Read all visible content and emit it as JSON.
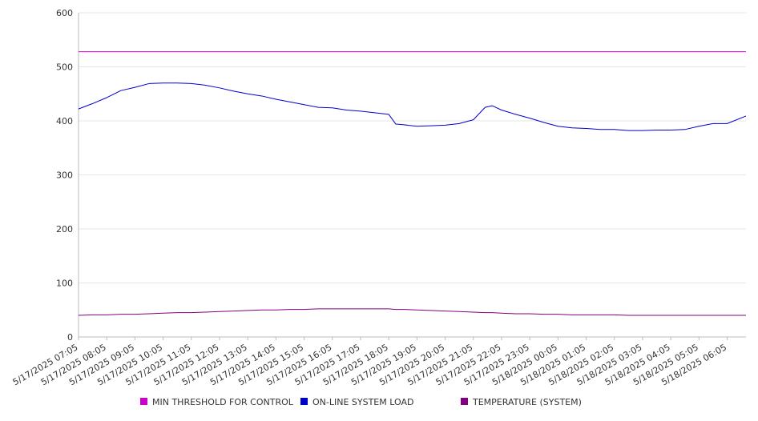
{
  "chart_data": {
    "type": "line",
    "title": "",
    "xlabel": "",
    "ylabel": "",
    "ylim": [
      0,
      600
    ],
    "yticks": [
      0,
      100,
      200,
      300,
      400,
      500,
      600
    ],
    "grid": true,
    "legend_position": "bottom",
    "x_range": [
      "5/17/2025 07:05",
      "5/18/2025 06:45"
    ],
    "x_tick_labels": [
      "5/17/2025 07:05",
      "5/17/2025 08:05",
      "5/17/2025 09:05",
      "5/17/2025 10:05",
      "5/17/2025 11:05",
      "5/17/2025 12:05",
      "5/17/2025 13:05",
      "5/17/2025 14:05",
      "5/17/2025 15:05",
      "5/17/2025 16:05",
      "5/17/2025 17:05",
      "5/17/2025 18:05",
      "5/17/2025 19:05",
      "5/17/2025 20:05",
      "5/17/2025 21:05",
      "5/17/2025 22:05",
      "5/17/2025 23:05",
      "5/18/2025 00:05",
      "5/18/2025 01:05",
      "5/18/2025 02:05",
      "5/18/2025 03:05",
      "5/18/2025 04:05",
      "5/18/2025 05:05",
      "5/18/2025 06:05"
    ],
    "x": [
      "5/17/2025 07:05",
      "5/17/2025 07:35",
      "5/17/2025 08:05",
      "5/17/2025 08:35",
      "5/17/2025 09:05",
      "5/17/2025 09:35",
      "5/17/2025 10:05",
      "5/17/2025 10:35",
      "5/17/2025 11:05",
      "5/17/2025 11:35",
      "5/17/2025 12:05",
      "5/17/2025 12:35",
      "5/17/2025 13:05",
      "5/17/2025 13:35",
      "5/17/2025 14:05",
      "5/17/2025 14:35",
      "5/17/2025 15:05",
      "5/17/2025 15:35",
      "5/17/2025 16:05",
      "5/17/2025 16:35",
      "5/17/2025 17:05",
      "5/17/2025 17:35",
      "5/17/2025 18:05",
      "5/17/2025 18:20",
      "5/17/2025 18:35",
      "5/17/2025 19:05",
      "5/17/2025 19:35",
      "5/17/2025 20:05",
      "5/17/2025 20:35",
      "5/17/2025 21:05",
      "5/17/2025 21:30",
      "5/17/2025 21:45",
      "5/17/2025 22:05",
      "5/17/2025 22:35",
      "5/17/2025 23:05",
      "5/17/2025 23:35",
      "5/18/2025 00:05",
      "5/18/2025 00:35",
      "5/18/2025 01:05",
      "5/18/2025 01:35",
      "5/18/2025 02:05",
      "5/18/2025 02:35",
      "5/18/2025 03:05",
      "5/18/2025 03:35",
      "5/18/2025 04:05",
      "5/18/2025 04:35",
      "5/18/2025 05:05",
      "5/18/2025 05:35",
      "5/18/2025 06:05",
      "5/18/2025 06:45"
    ],
    "series": [
      {
        "name": "MIN THRESHOLD FOR CONTROL",
        "color": "#cc00cc",
        "values": [
          528,
          528,
          528,
          528,
          528,
          528,
          528,
          528,
          528,
          528,
          528,
          528,
          528,
          528,
          528,
          528,
          528,
          528,
          528,
          528,
          528,
          528,
          528,
          528,
          528,
          528,
          528,
          528,
          528,
          528,
          528,
          528,
          528,
          528,
          528,
          528,
          528,
          528,
          528,
          528,
          528,
          528,
          528,
          528,
          528,
          528,
          528,
          528,
          528,
          528
        ]
      },
      {
        "name": "ON-LINE SYSTEM LOAD",
        "color": "#0000cc",
        "values": [
          422,
          432,
          443,
          456,
          462,
          469,
          470,
          470,
          469,
          466,
          461,
          455,
          450,
          446,
          440,
          435,
          430,
          425,
          424,
          420,
          418,
          415,
          412,
          394,
          393,
          390,
          391,
          392,
          395,
          402,
          425,
          428,
          420,
          412,
          405,
          397,
          390,
          387,
          386,
          384,
          384,
          382,
          382,
          383,
          383,
          384,
          390,
          395,
          395,
          409
        ]
      },
      {
        "name": "TEMPERATURE (SYSTEM)",
        "color": "#800080",
        "values": [
          40,
          41,
          41,
          42,
          42,
          43,
          44,
          45,
          45,
          46,
          47,
          48,
          49,
          50,
          50,
          51,
          51,
          52,
          52,
          52,
          52,
          52,
          52,
          51,
          51,
          50,
          49,
          48,
          47,
          46,
          45,
          45,
          44,
          43,
          43,
          42,
          42,
          41,
          41,
          41,
          41,
          40,
          40,
          40,
          40,
          40,
          40,
          40,
          40,
          40
        ]
      }
    ]
  }
}
